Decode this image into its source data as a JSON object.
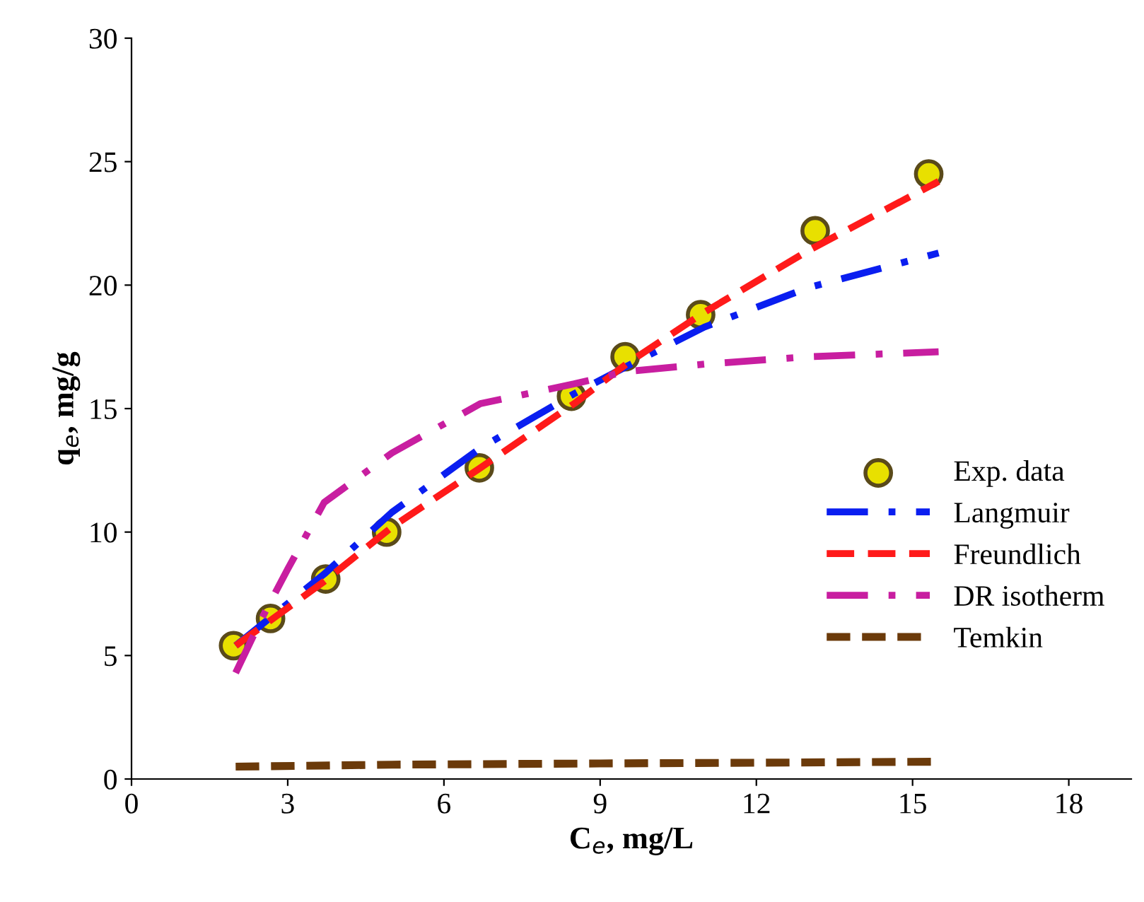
{
  "chart_data": {
    "type": "line",
    "xlabel": "C$_{e}$, mg/L",
    "ylabel": "q$_{e}$, mg/g",
    "xlim": [
      0,
      19.2
    ],
    "ylim": [
      0,
      30
    ],
    "xticks": [
      0,
      3,
      6,
      9,
      12,
      15,
      18
    ],
    "yticks": [
      0,
      5,
      10,
      15,
      20,
      25,
      30
    ],
    "grid": false,
    "legend": "right",
    "series": [
      {
        "name": "Exp. data",
        "type": "scatter",
        "marker": "circle",
        "color": "#e8e000",
        "x": [
          1.96,
          2.67,
          3.73,
          4.9,
          6.68,
          8.45,
          9.48,
          10.93,
          13.13,
          15.31
        ],
        "values": [
          5.4,
          6.5,
          8.1,
          10.0,
          12.6,
          15.5,
          17.1,
          18.8,
          22.2,
          24.5
        ]
      },
      {
        "name": "Langmuir",
        "line_style": "dashdot",
        "color": "#0a1ef0",
        "x": [
          2,
          3.7,
          5,
          6.7,
          8.5,
          9.5,
          11,
          13,
          15.5
        ],
        "values": [
          5.4,
          8.3,
          10.8,
          13.4,
          15.6,
          16.7,
          18.3,
          19.9,
          21.3
        ]
      },
      {
        "name": "Freundlich",
        "line_style": "dashed",
        "color": "#ff1a1a",
        "x": [
          2,
          3.7,
          5,
          6.7,
          8.5,
          9.5,
          11,
          13,
          15.5
        ],
        "values": [
          5.4,
          8.0,
          10.2,
          12.6,
          15.2,
          16.8,
          18.9,
          21.4,
          24.2
        ]
      },
      {
        "name": "DR isotherm",
        "line_style": "dashdot",
        "color": "#c81ea0",
        "x": [
          2,
          2.5,
          3,
          3.7,
          5,
          6.7,
          8.5,
          9.5,
          11,
          13,
          15.5
        ],
        "values": [
          4.3,
          6.5,
          8.5,
          11.2,
          13.2,
          15.2,
          16.0,
          16.5,
          16.8,
          17.1,
          17.3
        ]
      },
      {
        "name": "Temkin",
        "line_style": "dashed",
        "color": "#6b3a0a",
        "x": [
          2,
          5,
          9,
          12,
          15.5
        ],
        "values": [
          0.5,
          0.58,
          0.63,
          0.66,
          0.7
        ]
      }
    ]
  }
}
